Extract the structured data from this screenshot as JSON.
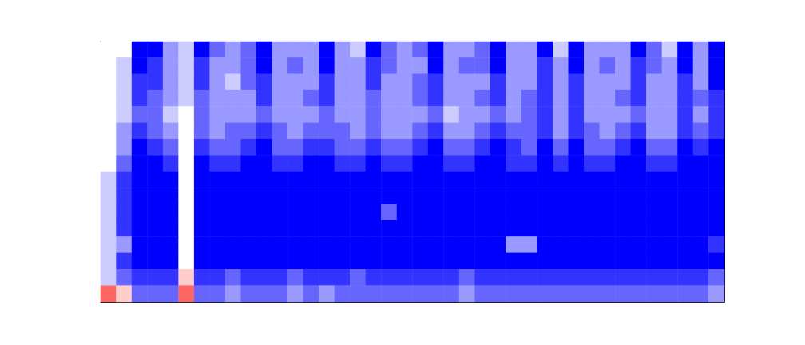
{
  "chart_data": {
    "type": "heatmap",
    "tick_labels": false,
    "zlim": [
      0,
      10
    ],
    "cells": [
      [
        5,
        5,
        0,
        0,
        3,
        4,
        0,
        2,
        3,
        2,
        0,
        3,
        3,
        3,
        0,
        3,
        4,
        0,
        2,
        3,
        2,
        0,
        3,
        3,
        2,
        0,
        3,
        3,
        0,
        4,
        0,
        3,
        3,
        3,
        0,
        2,
        4,
        0,
        3,
        0
      ],
      [
        5,
        4,
        0,
        1,
        3,
        4,
        1,
        3,
        3,
        2,
        0,
        3,
        2,
        3,
        0,
        3,
        3,
        1,
        2,
        3,
        3,
        0,
        3,
        2,
        2,
        0,
        3,
        3,
        1,
        3,
        0,
        3,
        2,
        3,
        1,
        2,
        3,
        0,
        3,
        0
      ],
      [
        5,
        4,
        1,
        1,
        3,
        4,
        1,
        3,
        4,
        2,
        1,
        3,
        3,
        3,
        1,
        3,
        3,
        1,
        3,
        3,
        2,
        1,
        3,
        3,
        3,
        1,
        3,
        3,
        1,
        3,
        1,
        3,
        3,
        3,
        1,
        3,
        3,
        1,
        3,
        0
      ],
      [
        5,
        4,
        1,
        2,
        3,
        4,
        2,
        3,
        3,
        3,
        1,
        3,
        3,
        2,
        1,
        3,
        3,
        2,
        3,
        3,
        2,
        1,
        3,
        3,
        2,
        1,
        3,
        2,
        1,
        3,
        1,
        3,
        3,
        2,
        1,
        3,
        3,
        1,
        2,
        1
      ],
      [
        5,
        4,
        2,
        2,
        4,
        5,
        2,
        3,
        3,
        3,
        2,
        3,
        3,
        3,
        2,
        3,
        3,
        2,
        3,
        3,
        3,
        2,
        4,
        3,
        3,
        2,
        3,
        2,
        1,
        3,
        1,
        3,
        3,
        3,
        2,
        3,
        3,
        1,
        3,
        1
      ],
      [
        5,
        3,
        1,
        2,
        3,
        5,
        2,
        3,
        2,
        2,
        1,
        2,
        3,
        2,
        2,
        2,
        3,
        2,
        3,
        3,
        2,
        1,
        3,
        3,
        2,
        1,
        2,
        2,
        1,
        3,
        1,
        2,
        3,
        2,
        1,
        3,
        3,
        1,
        2,
        1
      ],
      [
        5,
        3,
        0,
        1,
        2,
        5,
        1,
        2,
        2,
        1,
        0,
        2,
        2,
        1,
        1,
        2,
        2,
        1,
        2,
        2,
        1,
        0,
        2,
        2,
        1,
        0,
        1,
        2,
        0,
        2,
        0,
        2,
        2,
        1,
        0,
        2,
        2,
        0,
        1,
        0
      ],
      [
        5,
        2,
        0,
        0,
        1,
        5,
        0,
        1,
        1,
        0,
        0,
        1,
        1,
        0,
        0,
        1,
        1,
        0,
        1,
        1,
        0,
        0,
        1,
        1,
        0,
        0,
        1,
        1,
        0,
        1,
        0,
        1,
        1,
        0,
        0,
        1,
        1,
        0,
        0,
        0
      ],
      [
        4,
        1,
        0,
        0,
        0,
        5,
        0,
        0,
        0,
        0,
        0,
        0,
        0,
        0,
        0,
        0,
        0,
        0,
        0,
        0,
        0,
        0,
        0,
        0,
        0,
        0,
        0,
        0,
        0,
        0,
        0,
        0,
        0,
        0,
        0,
        0,
        0,
        0,
        0,
        0
      ],
      [
        4,
        1,
        0,
        0,
        0,
        5,
        0,
        0,
        0,
        0,
        0,
        0,
        0,
        0,
        0,
        0,
        0,
        0,
        0,
        0,
        0,
        0,
        0,
        0,
        0,
        0,
        0,
        0,
        0,
        0,
        0,
        0,
        0,
        0,
        0,
        0,
        0,
        0,
        0,
        0
      ],
      [
        4,
        1,
        0,
        0,
        0,
        5,
        0,
        0,
        0,
        0,
        0,
        0,
        0,
        0,
        0,
        0,
        0,
        0,
        2,
        0,
        0,
        0,
        0,
        0,
        0,
        0,
        0,
        0,
        0,
        0,
        0,
        0,
        0,
        0,
        0,
        0,
        0,
        0,
        0,
        0
      ],
      [
        4,
        1,
        0,
        0,
        0,
        5,
        0,
        0,
        0,
        0,
        0,
        0,
        0,
        0,
        0,
        0,
        0,
        0,
        0,
        0,
        0,
        0,
        0,
        0,
        0,
        0,
        0,
        0,
        0,
        0,
        0,
        0,
        0,
        0,
        0,
        0,
        0,
        0,
        0,
        0
      ],
      [
        4,
        3,
        0,
        0,
        0,
        5,
        0,
        0,
        0,
        0,
        0,
        0,
        0,
        0,
        0,
        0,
        0,
        0,
        0,
        0,
        0,
        0,
        0,
        0,
        0,
        0,
        3,
        3,
        0,
        0,
        0,
        0,
        0,
        0,
        0,
        0,
        0,
        0,
        0,
        1
      ],
      [
        4,
        1,
        0,
        0,
        0,
        5,
        0,
        0,
        0,
        0,
        0,
        0,
        0,
        0,
        0,
        0,
        0,
        0,
        0,
        0,
        0,
        0,
        0,
        0,
        0,
        0,
        0,
        0,
        0,
        0,
        0,
        0,
        0,
        0,
        0,
        0,
        0,
        0,
        0,
        0
      ],
      [
        4,
        2,
        1,
        1,
        1,
        6,
        1,
        1,
        2,
        1,
        1,
        1,
        2,
        1,
        1,
        1,
        2,
        1,
        1,
        1,
        1,
        1,
        1,
        2,
        1,
        1,
        1,
        1,
        1,
        1,
        1,
        1,
        1,
        1,
        1,
        1,
        1,
        1,
        1,
        2
      ],
      [
        8,
        6,
        2,
        2,
        2,
        8,
        2,
        2,
        3,
        2,
        2,
        2,
        3,
        2,
        3,
        2,
        2,
        2,
        2,
        2,
        2,
        2,
        2,
        3,
        2,
        2,
        2,
        2,
        2,
        2,
        2,
        2,
        2,
        2,
        2,
        2,
        2,
        2,
        2,
        3
      ]
    ]
  }
}
